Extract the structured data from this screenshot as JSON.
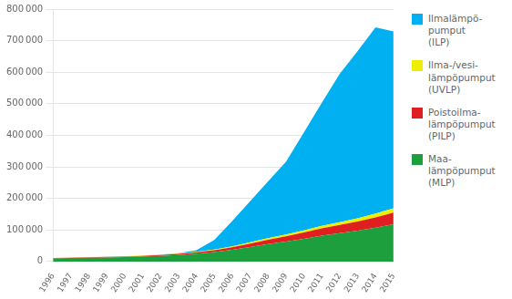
{
  "chart_data": {
    "type": "area",
    "stacked": true,
    "x": [
      1996,
      1997,
      1998,
      1999,
      2000,
      2001,
      2002,
      2003,
      2004,
      2005,
      2006,
      2007,
      2008,
      2009,
      2010,
      2011,
      2012,
      2013,
      2014,
      2015
    ],
    "xlim": [
      1996,
      2015
    ],
    "xticks": [
      1996,
      1997,
      1998,
      1999,
      2000,
      2001,
      2002,
      2003,
      2004,
      2005,
      2006,
      2007,
      2008,
      2009,
      2010,
      2011,
      2012,
      2013,
      2014,
      2015
    ],
    "ylim": [
      0,
      800000
    ],
    "yticks": [
      0,
      {
        "value": 100000,
        "label": "100 000"
      },
      {
        "value": 200000,
        "label": "200 000"
      },
      {
        "value": 300000,
        "label": "300 000"
      },
      {
        "value": 400000,
        "label": "400 000"
      },
      {
        "value": 500000,
        "label": "500 000"
      },
      {
        "value": 600000,
        "label": "600 000"
      },
      {
        "value": 700000,
        "label": "700 000"
      },
      {
        "value": 800000,
        "label": "800 000"
      }
    ],
    "grid": true,
    "legend": "right",
    "series": [
      {
        "name": "Maa-\nlämpöpumput\n(MLP)",
        "color": "#1e9f3e",
        "values": [
          10000,
          11000,
          12000,
          13000,
          14000,
          16000,
          18000,
          21000,
          25000,
          30000,
          37000,
          46000,
          55000,
          63000,
          72000,
          82000,
          90000,
          98000,
          107000,
          118000
        ]
      },
      {
        "name": "Poistoilma-\nlämpöpumput\n(PILP)",
        "color": "#e02020",
        "values": [
          1000,
          1200,
          1400,
          1600,
          1800,
          2100,
          2500,
          3000,
          4000,
          5500,
          8000,
          11000,
          14000,
          17000,
          20000,
          23000,
          26000,
          29000,
          33000,
          37000
        ]
      },
      {
        "name": "Ilma-/vesi-\nlämpöpumput\n(UVLP)",
        "color": "#eeee00",
        "values": [
          500,
          600,
          700,
          800,
          900,
          1000,
          1200,
          1500,
          2000,
          2500,
          3000,
          4000,
          5000,
          6000,
          7000,
          8000,
          9000,
          10000,
          12000,
          14000
        ]
      },
      {
        "name": "Ilmalämpö-\npumput\n(ILP)",
        "color": "#00b0f0",
        "values": [
          0,
          0,
          0,
          0,
          0,
          0,
          500,
          1000,
          5000,
          30000,
          80000,
          130000,
          180000,
          230000,
          310000,
          390000,
          470000,
          530000,
          590000,
          560000
        ]
      }
    ]
  }
}
